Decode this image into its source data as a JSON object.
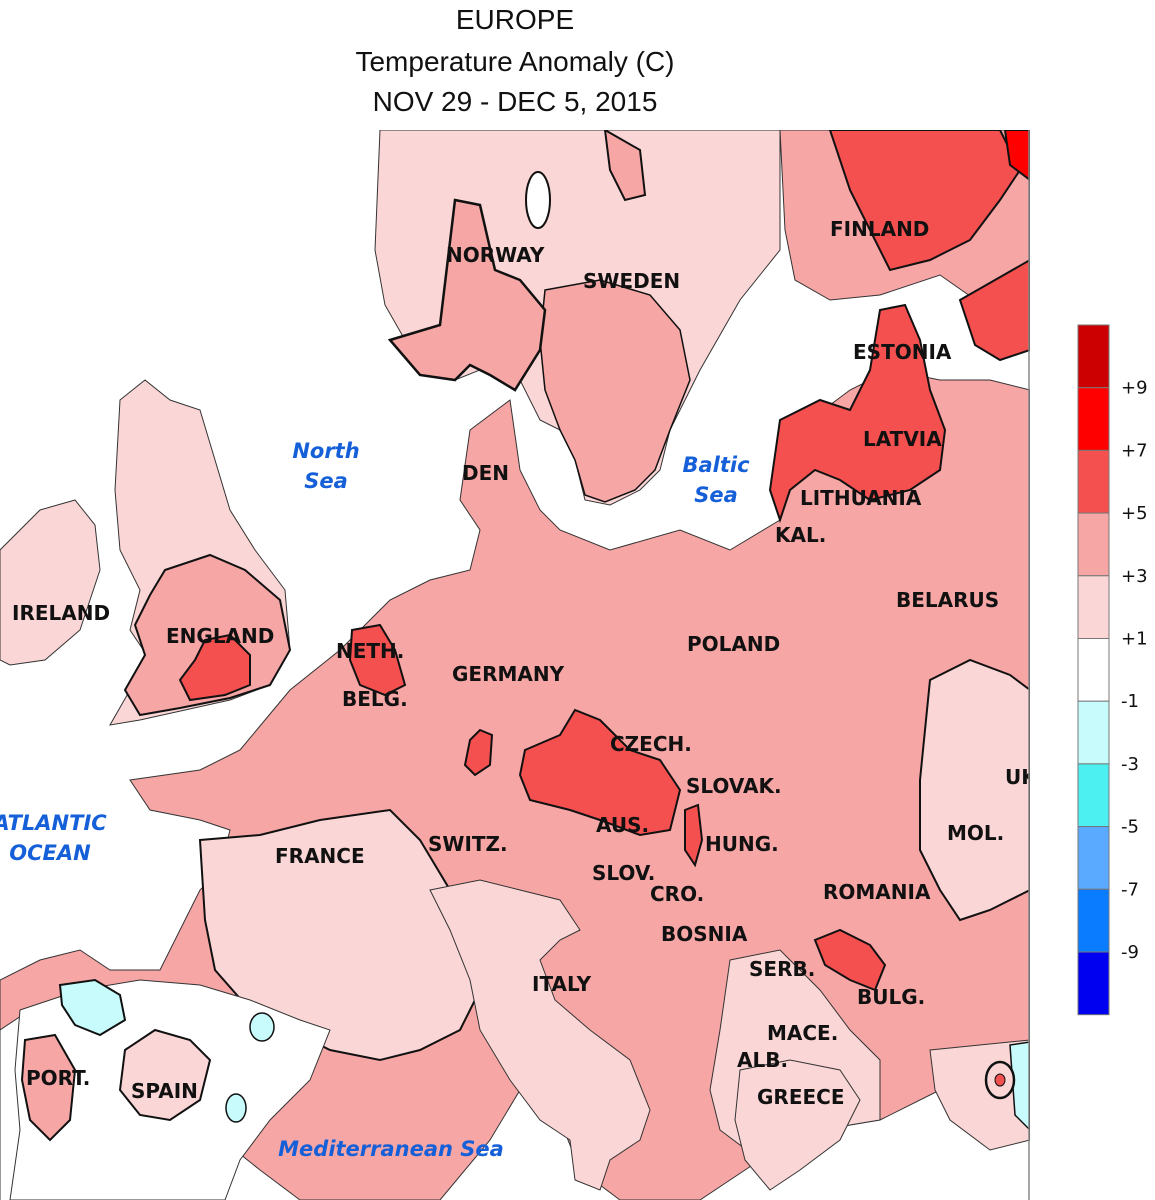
{
  "titles": {
    "line1": "EUROPE",
    "line2": "Temperature Anomaly (C)",
    "line3": "NOV 29 - DEC 5, 2015"
  },
  "countries": {
    "norway": "NORWAY",
    "sweden": "SWEDEN",
    "finland": "FINLAND",
    "estonia": "ESTONIA",
    "latvia": "LATVIA",
    "lithuania": "LITHUANIA",
    "kal": "KAL.",
    "den": "DEN",
    "belarus": "BELARUS",
    "ireland": "IRELAND",
    "england": "ENGLAND",
    "neth": "NETH.",
    "belg": "BELG.",
    "germany": "GERMANY",
    "poland": "POLAND",
    "czech": "CZECH.",
    "slovak": "SLOVAK.",
    "uk": "UK",
    "aus": "AUS.",
    "switz": "SWITZ.",
    "france": "FRANCE",
    "hung": "HUNG.",
    "mol": "MOL.",
    "slov": "SLOV.",
    "cro": "CRO.",
    "romania": "ROMANIA",
    "bosnia": "BOSNIA",
    "serb": "SERB.",
    "italy": "ITALY",
    "bulg": "BULG.",
    "mace": "MACE.",
    "alb": "ALB.",
    "greece": "GREECE",
    "port": "PORT.",
    "spain": "SPAIN"
  },
  "water": {
    "north1": "North",
    "north2": "Sea",
    "baltic1": "Baltic",
    "baltic2": "Sea",
    "atlantic1": "ATLANTIC",
    "atlantic2": "OCEAN",
    "med": "Mediterranean Sea"
  },
  "legend": {
    "colors": [
      "#cc0000",
      "#ff0000",
      "#f55050",
      "#f7a6a6",
      "#fbd6d6",
      "#ffffff",
      "#c8fbfb",
      "#4cf0f0",
      "#5aaaff",
      "#0a7cff",
      "#0000f0"
    ],
    "labels": [
      "+9",
      "+7",
      "+5",
      "+3",
      "+1",
      "-1",
      "-3",
      "-5",
      "-7",
      "-9"
    ]
  }
}
